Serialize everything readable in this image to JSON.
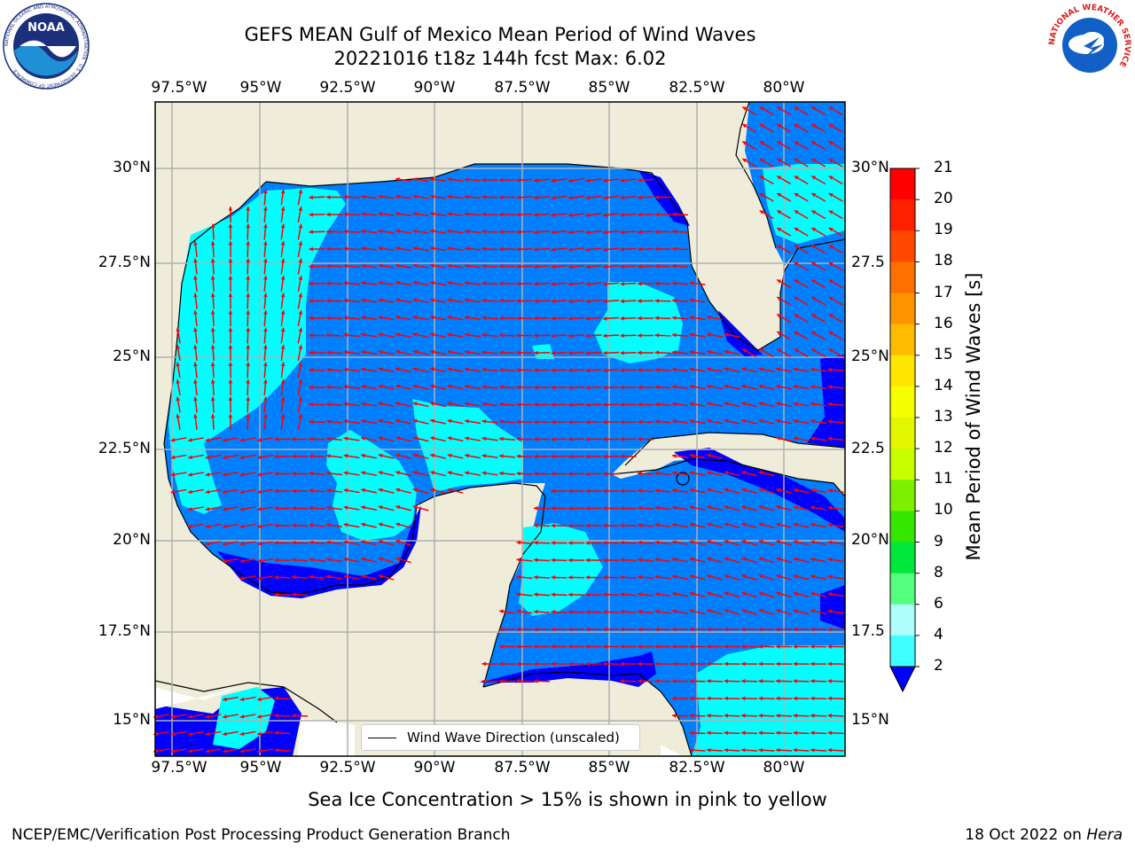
{
  "title_line1": "GEFS MEAN Gulf of Mexico Mean Period of Wind Waves",
  "title_line2": "20221016 t18z 144h fcst   Max: 6.02",
  "lon_labels": [
    "97.5°W",
    "95°W",
    "92.5°W",
    "90°W",
    "87.5°W",
    "85°W",
    "82.5°W",
    "80°W"
  ],
  "lat_labels": [
    "30°N",
    "27.5°N",
    "25°N",
    "22.5°N",
    "20°N",
    "17.5°N",
    "15°N"
  ],
  "lat_labels_right": [
    "30°N",
    "27.5",
    "25°N",
    "22.5",
    "20°N",
    "17.5",
    "15°N"
  ],
  "colorbar": {
    "label": "Mean Period of Wind Waves [s]",
    "ticks": [
      "21",
      "20",
      "19",
      "18",
      "17",
      "16",
      "15",
      "14",
      "13",
      "12",
      "11",
      "10",
      "9",
      "8",
      "6",
      "4",
      "2"
    ],
    "colors": [
      "#ff0000",
      "#ff2000",
      "#ff4800",
      "#ff7000",
      "#ff9400",
      "#ffbb00",
      "#ffe600",
      "#f5ff00",
      "#e2f700",
      "#c8ff00",
      "#7cf000",
      "#35e600",
      "#00e83a",
      "#55ff80",
      "#b0ffff",
      "#40ffff",
      "#00ffff",
      "#007fff"
    ],
    "extend_color": "#0000ff"
  },
  "legend_label": "Wind Wave Direction (unscaled)",
  "ice_note": "Sea Ice Concentration > 15% is shown in pink to yellow",
  "footer_left": "NCEP/EMC/Verification Post Processing Product Generation Branch",
  "footer_right_prefix": "18 Oct 2022 on ",
  "footer_right_host": "Hera",
  "logos": [
    "noaa-logo",
    "national-weather-service-logo"
  ],
  "logo_text": {
    "noaa": "NOAA",
    "noaa_ring": "NATIONAL OCEANIC AND ATMOSPHERIC ADMINISTRATION · U.S. DEPARTMENT OF COMMERCE",
    "nws_ring": "NATIONAL WEATHER SERVICE"
  },
  "map_colors": {
    "land": "#efedda",
    "waves_2_4": "#007fff",
    "waves_4_6": "#00ffff",
    "waves_lt_2": "#0000ff",
    "arrows": "#ff0000",
    "grid": "#b0b0b0"
  }
}
